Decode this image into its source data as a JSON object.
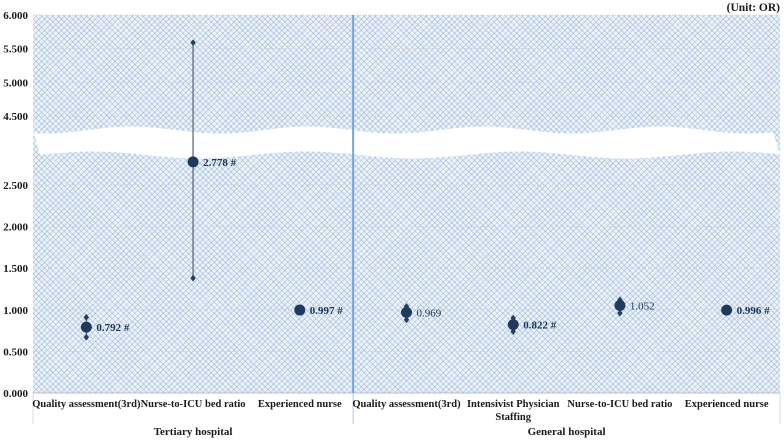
{
  "unit_label": "(Unit: OR)",
  "chart_data": {
    "type": "scatter",
    "title": "",
    "unit": "OR",
    "legend": "none",
    "grid": "horizontal-dotted",
    "y_axis": {
      "label": "",
      "ticks_low": [
        {
          "v": 0.0,
          "label": "0.000"
        },
        {
          "v": 0.5,
          "label": "0.500"
        },
        {
          "v": 1.0,
          "label": "1.000"
        },
        {
          "v": 1.5,
          "label": "1.500"
        },
        {
          "v": 2.0,
          "label": "2.000"
        },
        {
          "v": 2.5,
          "label": "2.500"
        }
      ],
      "ticks_high": [
        {
          "v": 4.5,
          "label": "4.500"
        },
        {
          "v": 5.0,
          "label": "5.000"
        },
        {
          "v": 5.5,
          "label": "5.500"
        },
        {
          "v": 6.0,
          "label": "6.000"
        }
      ],
      "axis_break": {
        "hidden_range": [
          2.9,
          4.3
        ]
      }
    },
    "groups": [
      {
        "label": "Tertiary hospital",
        "points": [
          {
            "category": "Quality assessment(3rd)",
            "category_lines": [
              "Quality assessment(3rd)"
            ],
            "value": 0.792,
            "value_label": "0.792 #",
            "ci": [
              0.67,
              0.91
            ],
            "significant": true
          },
          {
            "category": "Nurse-to-ICU bed ratio",
            "category_lines": [
              "Nurse-to-ICU bed ratio"
            ],
            "value": 2.778,
            "value_label": "2.778 #",
            "ci": [
              1.38,
              5.59
            ],
            "significant": true
          },
          {
            "category": "Experienced nurse",
            "category_lines": [
              "Experienced nurse"
            ],
            "value": 0.997,
            "value_label": "0.997 #",
            "ci": null,
            "significant": true
          }
        ]
      },
      {
        "label": "General hospital",
        "points": [
          {
            "category": "Quality assessment(3rd)",
            "category_lines": [
              "Quality assessment(3rd)"
            ],
            "value": 0.969,
            "value_label": "0.969",
            "ci": [
              0.88,
              1.04
            ],
            "significant": false
          },
          {
            "category": "Intensivist Physician Staffing",
            "category_lines": [
              "Intensivist Physician",
              "Staffing"
            ],
            "value": 0.822,
            "value_label": "0.822 #",
            "ci": [
              0.74,
              0.9
            ],
            "significant": true
          },
          {
            "category": "Nurse-to-ICU bed ratio",
            "category_lines": [
              "Nurse-to-ICU bed ratio"
            ],
            "value": 1.052,
            "value_label": "1.052",
            "ci": [
              0.96,
              1.12
            ],
            "significant": false
          },
          {
            "category": "Experienced nurse",
            "category_lines": [
              "Experienced nurse"
            ],
            "value": 0.996,
            "value_label": "0.996 #",
            "ci": null,
            "significant": true
          }
        ]
      }
    ],
    "colors": {
      "marker": "#1f3a5f",
      "value_label": "#17365d",
      "error_bar": "#5f6b7a",
      "cap": "#243c5e",
      "divider": "#74a3d8",
      "divider_light": "#aec6e4",
      "gridline": "#c9cdd4",
      "axis_line": "#b9bfc8",
      "pattern_fill": "#dce6f1"
    }
  }
}
